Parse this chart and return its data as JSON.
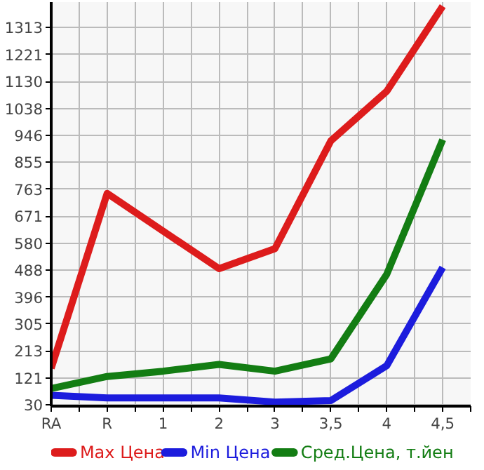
{
  "chart_data": {
    "type": "line",
    "categories": [
      "RA",
      "R",
      "1",
      "2",
      "3",
      "3,5",
      "4",
      "4,5"
    ],
    "series": [
      {
        "name": "Max Цена",
        "color": "#dd1c1c",
        "values": [
          154,
          749,
          621,
          493,
          561,
          928,
          1097,
          1386
        ]
      },
      {
        "name": "Min Цена",
        "color": "#1c1cdd",
        "values": [
          62,
          53,
          53,
          53,
          39,
          44,
          163,
          497
        ]
      },
      {
        "name": "Сред.Цена, т.йен",
        "color": "#137d13",
        "values": [
          85,
          126,
          144,
          167,
          144,
          186,
          474,
          932
        ]
      }
    ],
    "ylim": [
      25,
      1400
    ],
    "yticks": [
      30,
      121,
      213,
      305,
      396,
      488,
      580,
      671,
      763,
      855,
      946,
      1038,
      1130,
      1221,
      1313
    ],
    "grid": true,
    "legend": "bottom",
    "marker": "none",
    "line_style": "solid"
  }
}
